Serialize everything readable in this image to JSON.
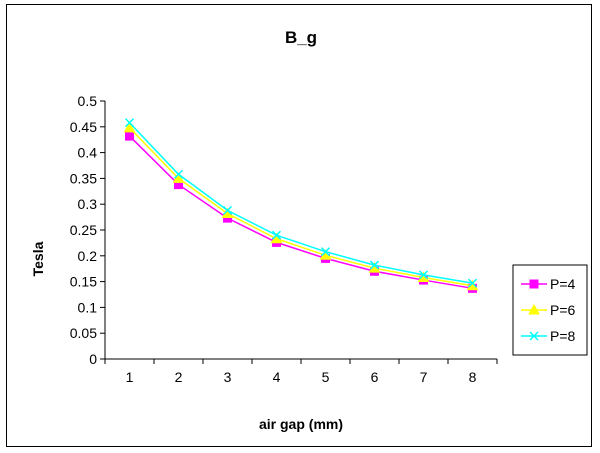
{
  "chart_data": {
    "type": "line",
    "title": "B_g",
    "xlabel": "air gap (mm)",
    "ylabel": "Tesla",
    "categories": [
      "1",
      "2",
      "3",
      "4",
      "5",
      "6",
      "7",
      "8"
    ],
    "ylim": [
      0,
      0.5
    ],
    "yticks": [
      "0",
      "0.05",
      "0.1",
      "0.15",
      "0.2",
      "0.25",
      "0.3",
      "0.35",
      "0.4",
      "0.45",
      "0.5"
    ],
    "grid": false,
    "legend_position": "right",
    "series": [
      {
        "name": "P=4",
        "color": "#ff00ff",
        "marker": "square",
        "values": [
          0.432,
          0.338,
          0.273,
          0.226,
          0.195,
          0.17,
          0.153,
          0.137
        ]
      },
      {
        "name": "P=6",
        "color": "#ffff00",
        "marker": "triangle",
        "values": [
          0.448,
          0.35,
          0.282,
          0.233,
          0.201,
          0.176,
          0.158,
          0.142
        ]
      },
      {
        "name": "P=8",
        "color": "#00ffff",
        "marker": "x",
        "values": [
          0.458,
          0.358,
          0.288,
          0.24,
          0.208,
          0.182,
          0.163,
          0.147
        ]
      }
    ]
  }
}
